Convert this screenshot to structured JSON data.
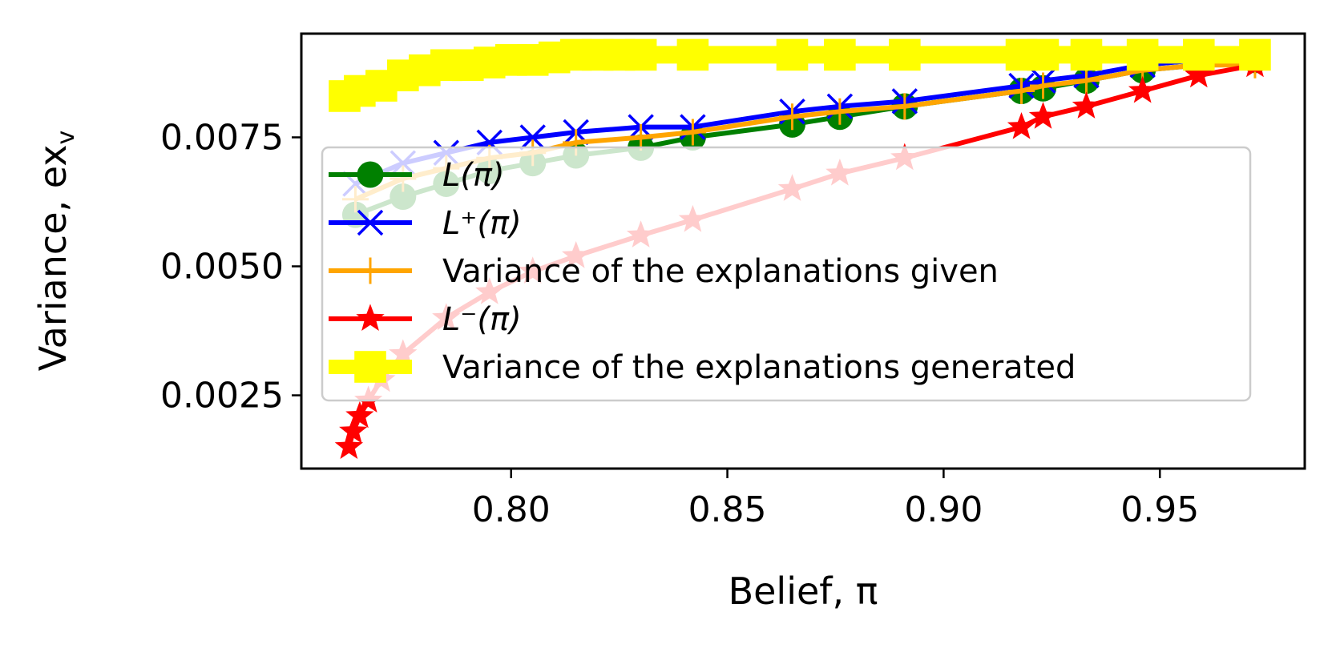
{
  "chart_data": {
    "type": "line",
    "xlabel": "Belief, π",
    "ylabel": "Variance, ex",
    "ylabel_sub": "v",
    "xlim": [
      0.7515,
      0.9835
    ],
    "ylim": [
      0.00108,
      0.00951
    ],
    "xticks": [
      0.8,
      0.85,
      0.9,
      0.95
    ],
    "xtick_labels": [
      "0.80",
      "0.85",
      "0.90",
      "0.95"
    ],
    "yticks": [
      0.0025,
      0.005,
      0.0075
    ],
    "ytick_labels": [
      "0.0025",
      "0.0050",
      "0.0075"
    ],
    "legend_position": "center-right",
    "grid": false,
    "series": [
      {
        "name": "L(π)",
        "color": "#008000",
        "marker": "circle",
        "x": [
          0.764,
          0.775,
          0.785,
          0.795,
          0.805,
          0.815,
          0.83,
          0.842,
          0.865,
          0.876,
          0.891,
          0.918,
          0.923,
          0.933,
          0.946,
          0.959,
          0.972
        ],
        "y": [
          0.006,
          0.00635,
          0.0066,
          0.00685,
          0.007,
          0.00715,
          0.0073,
          0.0075,
          0.00775,
          0.0079,
          0.0081,
          0.0084,
          0.00845,
          0.0086,
          0.0088,
          0.0089,
          0.009
        ]
      },
      {
        "name": "L⁺(π)",
        "color": "#0000ff",
        "marker": "x",
        "x": [
          0.764,
          0.775,
          0.785,
          0.795,
          0.805,
          0.815,
          0.83,
          0.842,
          0.865,
          0.876,
          0.891,
          0.918,
          0.923,
          0.933,
          0.946,
          0.959,
          0.972
        ],
        "y": [
          0.0066,
          0.007,
          0.0072,
          0.0074,
          0.0075,
          0.0076,
          0.0077,
          0.0077,
          0.008,
          0.0081,
          0.0082,
          0.0085,
          0.0086,
          0.0087,
          0.0089,
          0.009,
          0.0091
        ]
      },
      {
        "name": "Variance of the explanations given",
        "color": "#ffa500",
        "marker": "plus",
        "x": [
          0.764,
          0.775,
          0.785,
          0.795,
          0.805,
          0.815,
          0.83,
          0.842,
          0.865,
          0.876,
          0.891,
          0.918,
          0.923,
          0.933,
          0.946,
          0.959,
          0.972
        ],
        "y": [
          0.0063,
          0.0067,
          0.0069,
          0.0071,
          0.0072,
          0.0074,
          0.0075,
          0.0076,
          0.0079,
          0.008,
          0.0081,
          0.0084,
          0.0085,
          0.0086,
          0.0088,
          0.0089,
          0.0089
        ]
      },
      {
        "name": "L⁻(π)",
        "color": "#ff0000",
        "marker": "star",
        "x": [
          0.7625,
          0.7635,
          0.765,
          0.767,
          0.77,
          0.775,
          0.785,
          0.795,
          0.805,
          0.815,
          0.83,
          0.842,
          0.865,
          0.876,
          0.891,
          0.918,
          0.923,
          0.933,
          0.946,
          0.959,
          0.972
        ],
        "y": [
          0.0015,
          0.0018,
          0.0021,
          0.0024,
          0.0028,
          0.0033,
          0.004,
          0.0045,
          0.0049,
          0.0052,
          0.0056,
          0.0059,
          0.0065,
          0.0068,
          0.0071,
          0.0077,
          0.0079,
          0.0081,
          0.0084,
          0.0087,
          0.0089
        ]
      },
      {
        "name": "Variance of the explanations generated",
        "color": "#ffff00",
        "marker": "square",
        "x": [
          0.7615,
          0.765,
          0.77,
          0.775,
          0.78,
          0.785,
          0.79,
          0.795,
          0.8,
          0.805,
          0.81,
          0.815,
          0.82,
          0.825,
          0.83,
          0.842,
          0.865,
          0.876,
          0.891,
          0.918,
          0.923,
          0.933,
          0.946,
          0.959,
          0.972
        ],
        "y": [
          0.0083,
          0.0084,
          0.0085,
          0.0087,
          0.0088,
          0.0089,
          0.0089,
          0.00895,
          0.009,
          0.009,
          0.00905,
          0.0091,
          0.0091,
          0.0091,
          0.0091,
          0.0091,
          0.0091,
          0.0091,
          0.0091,
          0.0091,
          0.0091,
          0.0091,
          0.0091,
          0.0091,
          0.0091
        ]
      }
    ]
  }
}
